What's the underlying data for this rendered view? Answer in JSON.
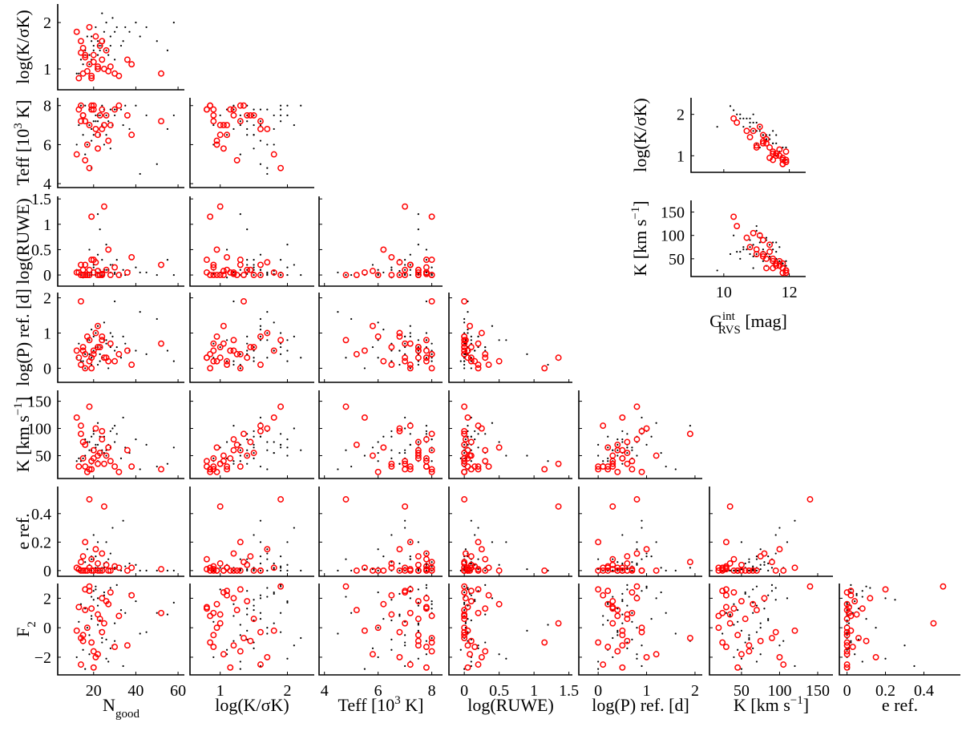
{
  "chart_data": {
    "type": "scatter",
    "layout": "corner-plot",
    "grid": false,
    "colors": {
      "sample": "#000000",
      "highlighted": "#ff0000"
    },
    "variables": [
      {
        "key": "Ngood",
        "label": [
          {
            "t": "N"
          },
          {
            "t": "good",
            "sub": true
          }
        ],
        "range": [
          3,
          63
        ],
        "ticks": [
          20,
          40,
          60
        ],
        "tick_labels": [
          "20",
          "40",
          "60"
        ]
      },
      {
        "key": "logKsK",
        "label": [
          {
            "t": "log(K/σK)"
          }
        ],
        "range": [
          0.55,
          2.4
        ],
        "ticks": [
          1,
          2
        ],
        "tick_labels": [
          "1",
          "2"
        ]
      },
      {
        "key": "Teff",
        "label": [
          {
            "t": "Teff [10"
          },
          {
            "t": "3",
            "sup": true
          },
          {
            "t": " K]"
          }
        ],
        "range": [
          3.8,
          8.4
        ],
        "ticks": [
          4,
          6,
          8
        ],
        "tick_labels": [
          "4",
          "6",
          "8"
        ]
      },
      {
        "key": "logRUWE",
        "label": [
          {
            "t": "log(RUWE)"
          }
        ],
        "range": [
          -0.22,
          1.55
        ],
        "ticks": [
          0,
          0.5,
          1,
          1.5
        ],
        "tick_labels": [
          "0",
          "0.5",
          "1",
          "1.5"
        ]
      },
      {
        "key": "logP",
        "label": [
          {
            "t": "log(P) ref. [d]"
          }
        ],
        "range": [
          -0.4,
          2.15
        ],
        "ticks": [
          0,
          1,
          2
        ],
        "tick_labels": [
          "0",
          "1",
          "2"
        ]
      },
      {
        "key": "K",
        "label": [
          {
            "t": "K [km s"
          },
          {
            "t": "−1",
            "sup": true
          },
          {
            "t": "]"
          }
        ],
        "range": [
          8,
          170
        ],
        "ticks": [
          50,
          100,
          150
        ],
        "tick_labels": [
          "50",
          "100",
          "150"
        ]
      },
      {
        "key": "e",
        "label": [
          {
            "t": "e ref."
          }
        ],
        "range": [
          -0.04,
          0.59
        ],
        "ticks": [
          0,
          0.2,
          0.4
        ],
        "tick_labels": [
          "0",
          "0.2",
          "0.4"
        ]
      },
      {
        "key": "F2",
        "label": [
          {
            "t": "F"
          },
          {
            "t": "2",
            "sub": true
          }
        ],
        "range": [
          -3.2,
          3.0
        ],
        "ticks": [
          -2,
          0,
          2
        ],
        "tick_labels": [
          "−2",
          "0",
          "2"
        ]
      },
      {
        "key": "G",
        "label": [
          {
            "t": "G"
          },
          {
            "t": "int",
            "sup": true
          },
          {
            "t": "RVS",
            "sub": true
          },
          {
            "t": " [mag]"
          }
        ],
        "range": [
          9,
          12.5
        ],
        "ticks": [
          10,
          12
        ],
        "tick_labels": [
          "10",
          "12"
        ]
      }
    ],
    "inset": {
      "x": "G",
      "y": [
        "logKsK",
        "K"
      ],
      "y_ranges": [
        [
          0.6,
          2.4
        ],
        [
          12,
          175
        ]
      ]
    },
    "columns": [
      "Ngood",
      "logKsK",
      "Teff",
      "logRUWE",
      "logP",
      "K",
      "e"
    ],
    "rows": [
      "logKsK",
      "Teff",
      "logRUWE",
      "logP",
      "K",
      "e",
      "F2"
    ],
    "fields": [
      "Ngood",
      "logKsK",
      "Teff",
      "logRUWE",
      "logP",
      "K",
      "e",
      "F2",
      "G"
    ],
    "sample": [
      [
        22,
        1.5,
        7.5,
        0.05,
        0.6,
        70,
        0.02,
        1.5,
        11.2
      ],
      [
        18,
        1.3,
        7.0,
        0.0,
        0.4,
        60,
        0.0,
        -0.5,
        11.0
      ],
      [
        25,
        1.6,
        7.8,
        0.1,
        0.8,
        85,
        0.05,
        2.2,
        11.5
      ],
      [
        30,
        1.8,
        7.5,
        0.02,
        0.5,
        75,
        0.01,
        0.3,
        10.8
      ],
      [
        15,
        1.1,
        6.5,
        -0.05,
        0.2,
        45,
        0.0,
        -1.5,
        11.7
      ],
      [
        20,
        1.4,
        7.2,
        0.2,
        0.9,
        90,
        0.08,
        2.5,
        11.3
      ],
      [
        35,
        1.9,
        8.0,
        0.0,
        0.7,
        65,
        0.03,
        1.0,
        10.5
      ],
      [
        12,
        0.9,
        6.0,
        0.1,
        0.3,
        40,
        0.0,
        -2.0,
        11.8
      ],
      [
        28,
        1.7,
        7.8,
        0.05,
        1.0,
        95,
        0.12,
        2.7,
        11.1
      ],
      [
        24,
        1.5,
        7.0,
        0.3,
        0.6,
        55,
        0.02,
        -1.0,
        11.4
      ],
      [
        19,
        1.2,
        6.8,
        0.0,
        0.1,
        35,
        0.0,
        0.8,
        11.9
      ],
      [
        40,
        2.0,
        8.0,
        0.15,
        0.5,
        80,
        0.04,
        1.8,
        10.9
      ],
      [
        45,
        1.9,
        7.5,
        0.05,
        0.4,
        70,
        0.0,
        -0.3,
        10.7
      ],
      [
        16,
        1.3,
        5.5,
        0.0,
        0.0,
        50,
        0.01,
        -2.8,
        11.6
      ],
      [
        22,
        1.6,
        7.2,
        0.4,
        1.2,
        110,
        0.2,
        2.0,
        11.0
      ],
      [
        26,
        1.4,
        6.5,
        0.1,
        0.7,
        60,
        0.06,
        -0.8,
        11.3
      ],
      [
        33,
        1.5,
        7.8,
        0.0,
        0.3,
        45,
        0.0,
        1.2,
        11.2
      ],
      [
        21,
        1.0,
        7.5,
        0.05,
        0.6,
        65,
        0.02,
        2.6,
        11.6
      ],
      [
        17,
        1.7,
        6.0,
        0.02,
        0.8,
        75,
        0.15,
        0.0,
        10.6
      ],
      [
        29,
        2.1,
        7.0,
        0.2,
        0.9,
        100,
        0.3,
        -1.2,
        10.3
      ],
      [
        14,
        1.2,
        8.0,
        0.0,
        0.2,
        40,
        0.0,
        1.6,
        11.8
      ],
      [
        37,
        1.8,
        6.8,
        0.08,
        0.5,
        55,
        0.05,
        2.3,
        11.0
      ],
      [
        23,
        1.4,
        7.5,
        0.9,
        0.4,
        50,
        0.01,
        -0.2,
        11.4
      ],
      [
        50,
        1.6,
        5.0,
        0.0,
        1.4,
        30,
        0.0,
        1.0,
        10.9
      ],
      [
        27,
        1.3,
        7.2,
        0.1,
        0.0,
        70,
        0.08,
        -2.3,
        11.5
      ],
      [
        19,
        1.6,
        6.2,
        0.05,
        1.1,
        85,
        0.1,
        0.6,
        11.1
      ],
      [
        31,
        1.9,
        7.8,
        0.3,
        0.6,
        90,
        0.02,
        2.9,
        10.8
      ],
      [
        24,
        2.2,
        8.0,
        0.0,
        0.3,
        60,
        0.0,
        -0.7,
        10.2
      ],
      [
        13,
        0.9,
        7.0,
        0.02,
        0.7,
        45,
        0.0,
        0.4,
        11.9
      ],
      [
        20,
        1.5,
        6.5,
        0.15,
        0.5,
        95,
        0.25,
        1.9,
        11.3
      ],
      [
        42,
        1.7,
        4.5,
        0.05,
        1.6,
        25,
        0.0,
        -0.4,
        9.8
      ],
      [
        58,
        2.0,
        7.5,
        0.0,
        0.2,
        65,
        0.0,
        1.7,
        10.4
      ],
      [
        18,
        1.1,
        7.8,
        0.5,
        0.8,
        75,
        0.04,
        -1.8,
        11.7
      ],
      [
        25,
        1.8,
        6.0,
        0.0,
        1.3,
        55,
        0.02,
        2.4,
        10.9
      ],
      [
        22,
        1.3,
        7.5,
        1.2,
        0.1,
        40,
        0.0,
        0.2,
        11.5
      ],
      [
        34,
        1.6,
        7.0,
        0.1,
        0.9,
        120,
        0.35,
        -2.6,
        11.0
      ],
      [
        16,
        1.4,
        8.0,
        0.02,
        0.4,
        80,
        0.06,
        1.3,
        11.4
      ],
      [
        28,
        1.5,
        5.8,
        0.2,
        0.6,
        65,
        0.01,
        -1.4,
        11.2
      ],
      [
        21,
        1.9,
        7.2,
        0.0,
        1.0,
        70,
        0.1,
        2.8,
        10.6
      ],
      [
        55,
        1.4,
        6.8,
        0.3,
        0.5,
        35,
        0.0,
        0.9,
        11.3
      ],
      [
        30,
        1.2,
        7.8,
        0.05,
        1.9,
        105,
        0.02,
        -0.9,
        11.1
      ],
      [
        19,
        1.7,
        4.8,
        0.0,
        0.3,
        60,
        0.08,
        2.1,
        10.8
      ],
      [
        26,
        2.0,
        7.5,
        0.6,
        0.8,
        50,
        0.2,
        -2.1,
        10.5
      ],
      [
        23,
        1.5,
        6.5,
        0.1,
        0.2,
        85,
        0.0,
        0.5,
        11.6
      ]
    ],
    "highlighted": [
      [
        13,
        0.8,
        7.8,
        0.05,
        0.3,
        30,
        0.01,
        1.4,
        11.8
      ],
      [
        15,
        0.9,
        7.5,
        0.0,
        0.5,
        45,
        0.0,
        -0.5,
        11.5
      ],
      [
        18,
        1.1,
        7.0,
        0.1,
        0.2,
        25,
        0.02,
        2.5,
        11.9
      ],
      [
        20,
        1.3,
        8.0,
        0.3,
        0.4,
        60,
        0.0,
        -1.6,
        11.2
      ],
      [
        22,
        1.0,
        6.5,
        0.0,
        0.6,
        35,
        0.05,
        0.9,
        11.7
      ],
      [
        14,
        1.6,
        7.2,
        0.2,
        0.1,
        105,
        0.0,
        -2.5,
        10.9
      ],
      [
        24,
        1.2,
        7.8,
        0.02,
        0.8,
        80,
        0.12,
        2.0,
        11.4
      ],
      [
        17,
        0.95,
        6.0,
        0.0,
        0.9,
        20,
        0.0,
        0.0,
        11.8
      ],
      [
        26,
        1.4,
        7.5,
        0.1,
        0.3,
        50,
        0.04,
        1.8,
        11.3
      ],
      [
        12,
        1.8,
        5.5,
        0.05,
        0.5,
        120,
        0.02,
        -0.2,
        10.4
      ],
      [
        19,
        0.85,
        8.0,
        1.15,
        0.0,
        25,
        0.0,
        -1.0,
        11.9
      ],
      [
        28,
        1.05,
        7.0,
        0.0,
        0.7,
        40,
        0.0,
        2.4,
        11.6
      ],
      [
        21,
        1.7,
        6.8,
        0.25,
        1.0,
        100,
        0.15,
        -2.0,
        11.1
      ],
      [
        16,
        1.25,
        5.2,
        0.0,
        0.4,
        70,
        0.0,
        1.2,
        11.0
      ],
      [
        30,
        0.9,
        7.8,
        0.15,
        0.2,
        30,
        0.03,
        -1.3,
        11.8
      ],
      [
        23,
        1.5,
        7.5,
        0.0,
        0.6,
        55,
        0.0,
        0.6,
        11.2
      ],
      [
        38,
        1.1,
        6.5,
        0.35,
        0.1,
        30,
        0.02,
        2.2,
        11.5
      ],
      [
        52,
        0.9,
        7.2,
        0.2,
        0.7,
        25,
        0.01,
        1.0,
        11.9
      ],
      [
        14,
        1.35,
        8.0,
        0.0,
        1.9,
        90,
        0.06,
        -0.7,
        11.2
      ],
      [
        25,
        1.0,
        7.0,
        1.35,
        0.3,
        35,
        0.45,
        0.3,
        11.6
      ],
      [
        18,
        1.9,
        4.8,
        0.0,
        0.8,
        140,
        0.5,
        2.8,
        10.3
      ],
      [
        20,
        1.15,
        7.8,
        0.05,
        0.5,
        45,
        0.0,
        -2.7,
        11.7
      ],
      [
        27,
        0.95,
        6.2,
        0.5,
        0.2,
        65,
        0.0,
        1.6,
        11.4
      ],
      [
        15,
        1.45,
        7.5,
        0.1,
        0.6,
        75,
        0.1,
        -0.9,
        10.8
      ],
      [
        32,
        0.85,
        8.0,
        0.0,
        0.4,
        20,
        0.02,
        0.8,
        11.9
      ],
      [
        22,
        1.05,
        5.8,
        0.08,
        1.2,
        50,
        0.0,
        -1.8,
        11.5
      ],
      [
        16,
        1.3,
        7.2,
        0.2,
        0.0,
        30,
        0.2,
        2.6,
        11.3
      ],
      [
        24,
        1.6,
        6.8,
        0.0,
        0.9,
        95,
        0.0,
        -0.3,
        10.7
      ],
      [
        19,
        0.8,
        7.8,
        0.3,
        0.3,
        40,
        0.08,
        1.3,
        11.8
      ],
      [
        36,
        1.2,
        7.5,
        0.05,
        0.5,
        60,
        0.0,
        -1.2,
        11.0
      ]
    ]
  }
}
